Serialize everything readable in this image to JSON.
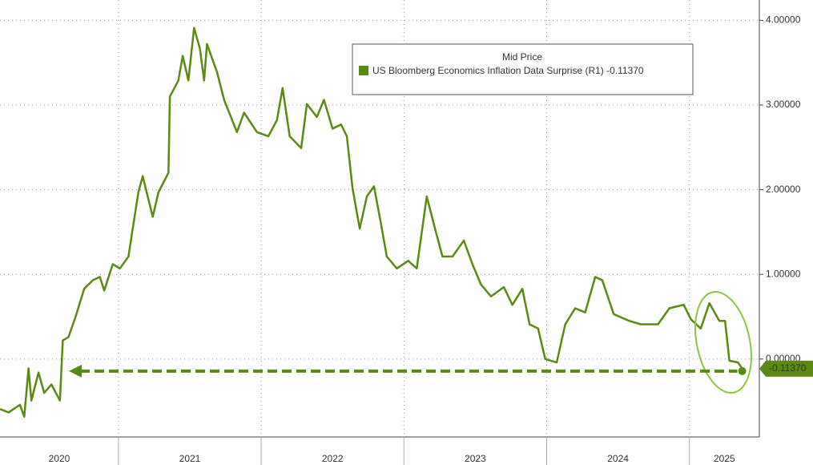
{
  "chart_data": {
    "type": "line",
    "legend_title": "Mid Price",
    "legend": "top-right",
    "grid": true,
    "x": [
      2020.17,
      2020.23,
      2020.31,
      2020.34,
      2020.37,
      2020.39,
      2020.44,
      2020.48,
      2020.53,
      2020.59,
      2020.61,
      2020.65,
      2020.7,
      2020.76,
      2020.82,
      2020.87,
      2020.9,
      2020.96,
      2021.01,
      2021.07,
      2021.1,
      2021.14,
      2021.17,
      2021.24,
      2021.28,
      2021.35,
      2021.36,
      2021.42,
      2021.45,
      2021.49,
      2021.53,
      2021.57,
      2021.6,
      2021.62,
      2021.69,
      2021.74,
      2021.83,
      2021.88,
      2021.97,
      2022.05,
      2022.11,
      2022.15,
      2022.2,
      2022.28,
      2022.32,
      2022.39,
      2022.44,
      2022.5,
      2022.56,
      2022.6,
      2022.64,
      2022.69,
      2022.74,
      2022.79,
      2022.84,
      2022.88,
      2022.95,
      2023.03,
      2023.09,
      2023.16,
      2023.21,
      2023.27,
      2023.34,
      2023.42,
      2023.48,
      2023.54,
      2023.61,
      2023.7,
      2023.76,
      2023.83,
      2023.88,
      2023.94,
      2023.99,
      2024.07,
      2024.13,
      2024.2,
      2024.27,
      2024.34,
      2024.39,
      2024.47,
      2024.58,
      2024.66,
      2024.78,
      2024.86,
      2024.96,
      2025.01,
      2025.08,
      2025.14,
      2025.21,
      2025.25,
      2025.28,
      2025.34,
      2025.37
    ],
    "series": [
      {
        "name": "US Bloomberg Economics Inflation Data Surprise  (R1) -0.11370",
        "color": "#5a8a12",
        "axis": "y2",
        "values": [
          -0.59,
          -0.63,
          -0.54,
          -0.68,
          -0.11,
          -0.49,
          -0.16,
          -0.4,
          -0.3,
          -0.49,
          0.22,
          0.26,
          0.5,
          0.83,
          0.93,
          0.97,
          0.81,
          1.12,
          1.07,
          1.21,
          1.54,
          1.97,
          2.16,
          1.68,
          1.97,
          2.2,
          3.1,
          3.29,
          3.58,
          3.29,
          3.91,
          3.67,
          3.29,
          3.72,
          3.39,
          3.06,
          2.68,
          2.91,
          2.68,
          2.63,
          2.82,
          3.2,
          2.63,
          2.49,
          3.01,
          2.86,
          3.06,
          2.72,
          2.77,
          2.63,
          2.02,
          1.54,
          1.92,
          2.04,
          1.59,
          1.21,
          1.07,
          1.16,
          1.07,
          1.92,
          1.59,
          1.21,
          1.21,
          1.4,
          1.12,
          0.88,
          0.74,
          0.85,
          0.64,
          0.83,
          0.41,
          0.36,
          0.0,
          -0.04,
          0.41,
          0.6,
          0.55,
          0.97,
          0.93,
          0.53,
          0.45,
          0.41,
          0.41,
          0.6,
          0.64,
          0.47,
          0.36,
          0.66,
          0.45,
          0.45,
          -0.02,
          -0.04,
          -0.1137
        ]
      }
    ],
    "xlim": [
      2020.17,
      2025.49
    ],
    "xticks": [
      {
        "value": 2020,
        "label": "2020"
      },
      {
        "value": 2021,
        "label": "2021"
      },
      {
        "value": 2022,
        "label": "2022"
      },
      {
        "value": 2023,
        "label": "2023"
      },
      {
        "value": 2024,
        "label": "2024"
      },
      {
        "value": 2025,
        "label": "2025"
      }
    ],
    "y2lim": [
      -0.92,
      4.24
    ],
    "y2ticks": [
      {
        "value": 0,
        "label": "0.00000"
      },
      {
        "value": 1,
        "label": "1.00000"
      },
      {
        "value": 2,
        "label": "2.00000"
      },
      {
        "value": 3,
        "label": "3.00000"
      },
      {
        "value": 4,
        "label": "4.00000"
      }
    ],
    "annotations": [
      {
        "text": "-0.11370",
        "value": -0.1137
      }
    ]
  }
}
